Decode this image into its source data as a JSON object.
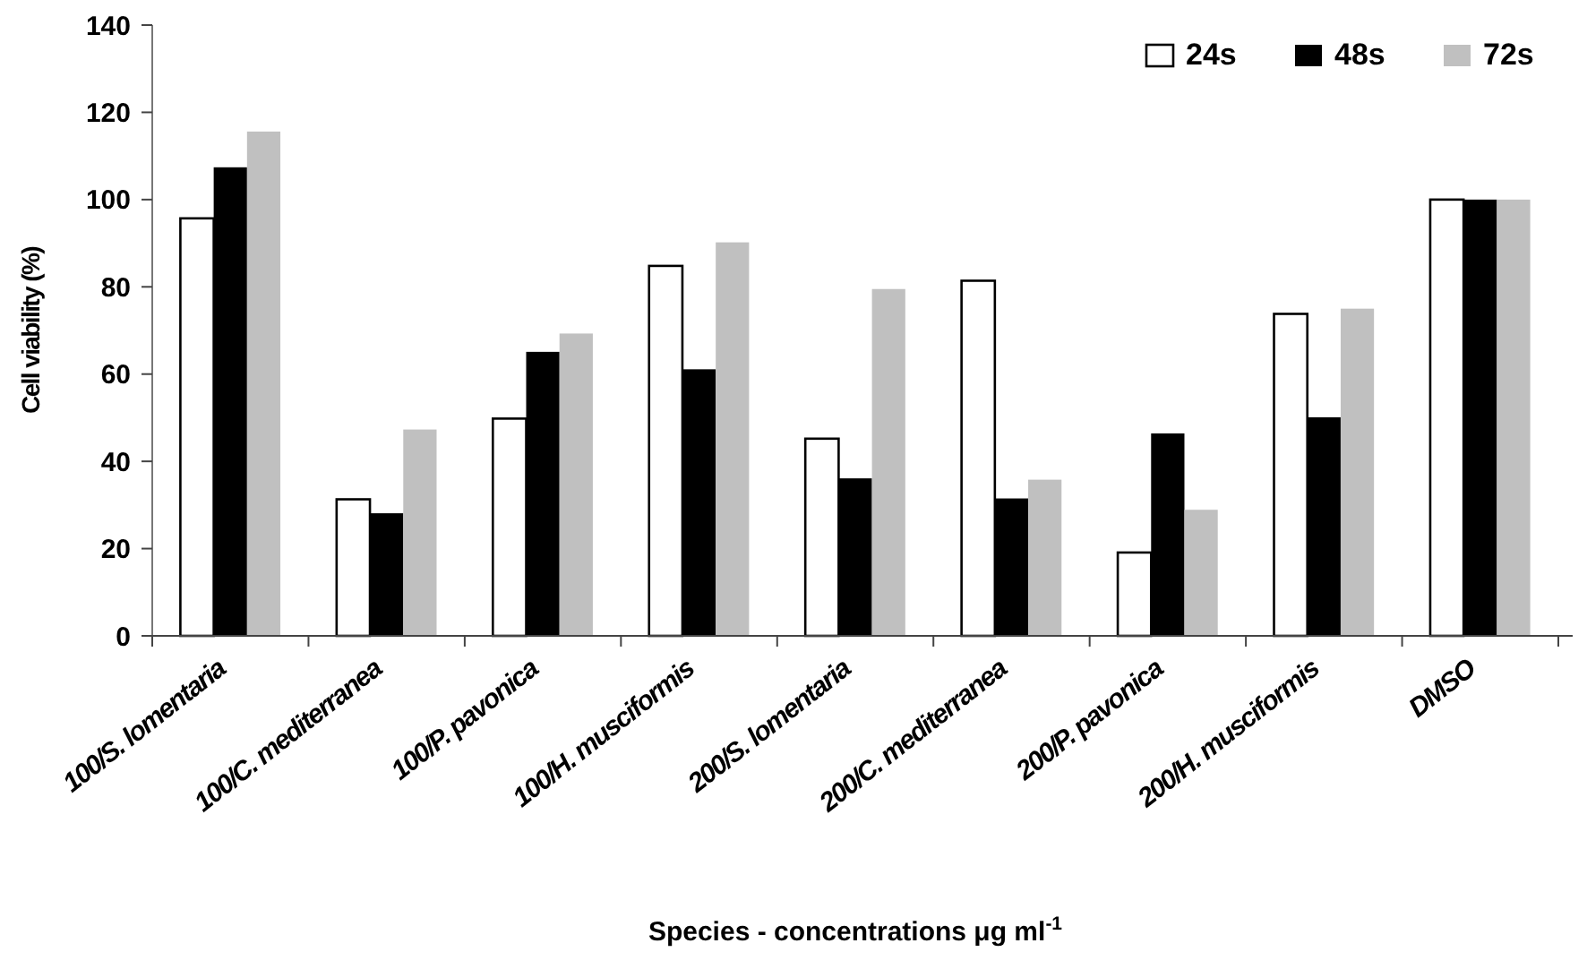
{
  "chart_data": {
    "type": "bar",
    "xlabel": "Species - concentrations μg ml$^{-1}$",
    "ylabel": "Cell viability (%)",
    "categories": [
      "100/S. lomentaria",
      "100/C. mediterranea",
      "100/P. pavonica",
      "100/H. musciformis",
      "200/S. lomentaria",
      "200/C. mediterranea",
      "200/P. pavonica",
      "200/H. musciformis",
      "DMSO"
    ],
    "series": [
      {
        "name": "24s",
        "color": "#ffffff",
        "values": [
          95.7,
          31.3,
          49.8,
          84.8,
          45.2,
          81.4,
          19.1,
          73.8,
          100
        ]
      },
      {
        "name": "48s",
        "color": "#000000",
        "values": [
          107.4,
          28.1,
          65.1,
          61.1,
          36.1,
          31.5,
          46.4,
          50.1,
          100
        ]
      },
      {
        "name": "72s",
        "color": "#c0c0c0",
        "values": [
          115.6,
          47.3,
          69.3,
          90.2,
          79.5,
          35.8,
          28.9,
          75.0,
          100
        ]
      }
    ],
    "ylim": [
      0,
      140
    ],
    "yticks": [
      0,
      20,
      40,
      60,
      80,
      100,
      120,
      140
    ],
    "grid": false,
    "legend": "top right"
  }
}
